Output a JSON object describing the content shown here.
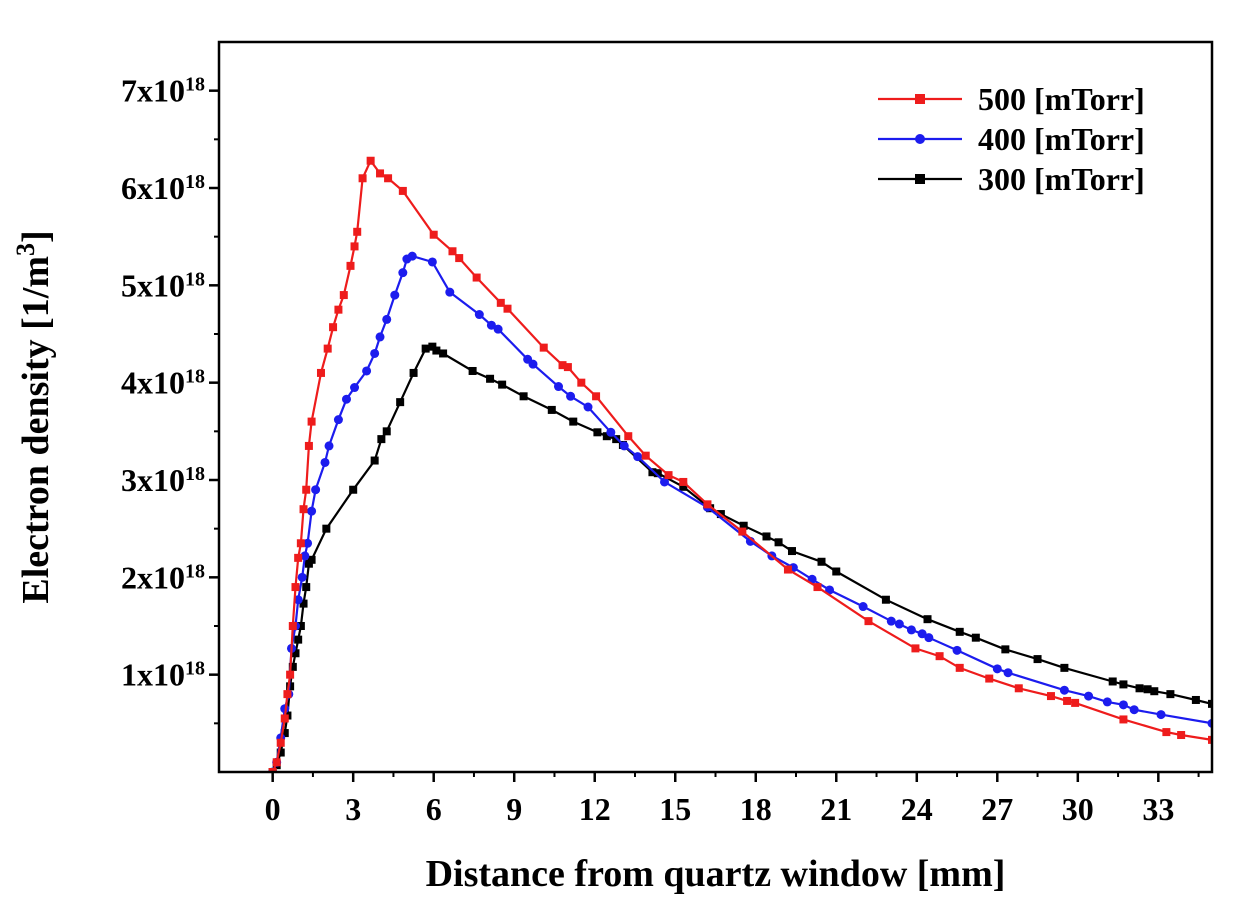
{
  "chart_data": {
    "type": "line",
    "title": "",
    "xlabel": "Distance from quartz window [mm]",
    "ylabel": "Electron density [1/m",
    "ylabel_sup": "3",
    "ylabel_close": "]",
    "xlim": [
      -2,
      35
    ],
    "ylim": [
      0,
      7.5e+18
    ],
    "x_ticks": [
      0,
      3,
      6,
      9,
      12,
      15,
      18,
      21,
      24,
      27,
      30,
      33
    ],
    "x_tick_labels": [
      "0",
      "3",
      "6",
      "9",
      "12",
      "15",
      "18",
      "21",
      "24",
      "27",
      "30",
      "33"
    ],
    "y_ticks": [
      1e+18,
      2e+18,
      3e+18,
      4e+18,
      5e+18,
      6e+18,
      7e+18
    ],
    "y_tick_labels": [
      {
        "base": "1x10",
        "exp": "18"
      },
      {
        "base": "2x10",
        "exp": "18"
      },
      {
        "base": "3x10",
        "exp": "18"
      },
      {
        "base": "4x10",
        "exp": "18"
      },
      {
        "base": "5x10",
        "exp": "18"
      },
      {
        "base": "6x10",
        "exp": "18"
      },
      {
        "base": "7x10",
        "exp": "18"
      }
    ],
    "grid": false,
    "legend_position": "top-right",
    "series": [
      {
        "name": "500 [mTorr]",
        "color": "#ee1c1c",
        "marker": "square",
        "points": [
          [
            0.0,
            0.0
          ],
          [
            0.15,
            1e+17
          ],
          [
            0.3,
            3e+17
          ],
          [
            0.45,
            5.5e+17
          ],
          [
            0.55,
            8e+17
          ],
          [
            0.65,
            1e+18
          ],
          [
            0.75,
            1.5e+18
          ],
          [
            0.85,
            1.9e+18
          ],
          [
            0.95,
            2.2e+18
          ],
          [
            1.05,
            2.35e+18
          ],
          [
            1.15,
            2.7e+18
          ],
          [
            1.25,
            2.9e+18
          ],
          [
            1.35,
            3.35e+18
          ],
          [
            1.45,
            3.6e+18
          ],
          [
            1.8,
            4.1e+18
          ],
          [
            2.05,
            4.35e+18
          ],
          [
            2.25,
            4.57e+18
          ],
          [
            2.45,
            4.75e+18
          ],
          [
            2.65,
            4.9e+18
          ],
          [
            2.9,
            5.2e+18
          ],
          [
            3.05,
            5.4e+18
          ],
          [
            3.15,
            5.55e+18
          ],
          [
            3.35,
            6.1e+18
          ],
          [
            3.65,
            6.28e+18
          ],
          [
            4.0,
            6.15e+18
          ],
          [
            4.3,
            6.1e+18
          ],
          [
            4.85,
            5.97e+18
          ],
          [
            6.0,
            5.52e+18
          ],
          [
            6.7,
            5.35e+18
          ],
          [
            6.95,
            5.28e+18
          ],
          [
            7.6,
            5.08e+18
          ],
          [
            8.5,
            4.82e+18
          ],
          [
            8.75,
            4.76e+18
          ],
          [
            10.1,
            4.36e+18
          ],
          [
            10.8,
            4.18e+18
          ],
          [
            11.0,
            4.16e+18
          ],
          [
            11.5,
            4e+18
          ],
          [
            12.05,
            3.86e+18
          ],
          [
            13.25,
            3.45e+18
          ],
          [
            13.9,
            3.25e+18
          ],
          [
            14.75,
            3.05e+18
          ],
          [
            15.3,
            2.98e+18
          ],
          [
            16.2,
            2.75e+18
          ],
          [
            17.5,
            2.47e+18
          ],
          [
            19.2,
            2.08e+18
          ],
          [
            20.3,
            1.9e+18
          ],
          [
            22.2,
            1.55e+18
          ],
          [
            23.95,
            1.27e+18
          ],
          [
            24.85,
            1.19e+18
          ],
          [
            25.6,
            1.07e+18
          ],
          [
            26.7,
            9.6e+17
          ],
          [
            27.8,
            8.6e+17
          ],
          [
            29.0,
            7.8e+17
          ],
          [
            29.6,
            7.3e+17
          ],
          [
            29.9,
            7.1e+17
          ],
          [
            31.7,
            5.4e+17
          ],
          [
            33.3,
            4.1e+17
          ],
          [
            33.85,
            3.8e+17
          ],
          [
            35.0,
            3.3e+17
          ]
        ]
      },
      {
        "name": "400 [mTorr]",
        "color": "#1c1cee",
        "marker": "circle",
        "points": [
          [
            0.0,
            0.0
          ],
          [
            0.15,
            1e+17
          ],
          [
            0.3,
            3.5e+17
          ],
          [
            0.45,
            6.5e+17
          ],
          [
            0.6,
            8e+17
          ],
          [
            0.7,
            1.27e+18
          ],
          [
            0.85,
            1.5e+18
          ],
          [
            0.95,
            1.77e+18
          ],
          [
            1.1,
            2e+18
          ],
          [
            1.2,
            2.22e+18
          ],
          [
            1.3,
            2.35e+18
          ],
          [
            1.45,
            2.68e+18
          ],
          [
            1.6,
            2.9e+18
          ],
          [
            1.95,
            3.18e+18
          ],
          [
            2.1,
            3.35e+18
          ],
          [
            2.45,
            3.62e+18
          ],
          [
            2.75,
            3.83e+18
          ],
          [
            3.05,
            3.95e+18
          ],
          [
            3.5,
            4.12e+18
          ],
          [
            3.8,
            4.3e+18
          ],
          [
            4.0,
            4.47e+18
          ],
          [
            4.25,
            4.65e+18
          ],
          [
            4.55,
            4.9e+18
          ],
          [
            4.85,
            5.13e+18
          ],
          [
            5.0,
            5.27e+18
          ],
          [
            5.2,
            5.3e+18
          ],
          [
            5.95,
            5.24e+18
          ],
          [
            6.6,
            4.93e+18
          ],
          [
            7.7,
            4.7e+18
          ],
          [
            8.15,
            4.59e+18
          ],
          [
            8.4,
            4.55e+18
          ],
          [
            9.5,
            4.24e+18
          ],
          [
            9.7,
            4.19e+18
          ],
          [
            10.65,
            3.96e+18
          ],
          [
            11.1,
            3.86e+18
          ],
          [
            11.75,
            3.75e+18
          ],
          [
            12.6,
            3.49e+18
          ],
          [
            13.1,
            3.35e+18
          ],
          [
            13.6,
            3.24e+18
          ],
          [
            14.6,
            2.98e+18
          ],
          [
            16.2,
            2.72e+18
          ],
          [
            17.8,
            2.37e+18
          ],
          [
            18.6,
            2.22e+18
          ],
          [
            19.4,
            2.1e+18
          ],
          [
            20.1,
            1.98e+18
          ],
          [
            20.75,
            1.87e+18
          ],
          [
            22.0,
            1.7e+18
          ],
          [
            23.05,
            1.55e+18
          ],
          [
            23.35,
            1.52e+18
          ],
          [
            23.8,
            1.46e+18
          ],
          [
            24.2,
            1.42e+18
          ],
          [
            24.45,
            1.38e+18
          ],
          [
            25.5,
            1.25e+18
          ],
          [
            27.0,
            1.06e+18
          ],
          [
            27.4,
            1.02e+18
          ],
          [
            29.5,
            8.4e+17
          ],
          [
            30.4,
            7.8e+17
          ],
          [
            31.1,
            7.2e+17
          ],
          [
            31.7,
            6.9e+17
          ],
          [
            32.1,
            6.4e+17
          ],
          [
            33.1,
            5.9e+17
          ],
          [
            35.0,
            5e+17
          ]
        ]
      },
      {
        "name": "300 [mTorr]",
        "color": "#000000",
        "marker": "square",
        "points": [
          [
            0.0,
            0.0
          ],
          [
            0.15,
            7e+16
          ],
          [
            0.3,
            2e+17
          ],
          [
            0.45,
            4e+17
          ],
          [
            0.55,
            5.8e+17
          ],
          [
            0.65,
            8.8e+17
          ],
          [
            0.75,
            1.08e+18
          ],
          [
            0.85,
            1.22e+18
          ],
          [
            0.95,
            1.36e+18
          ],
          [
            1.05,
            1.5e+18
          ],
          [
            1.15,
            1.73e+18
          ],
          [
            1.25,
            1.9e+18
          ],
          [
            1.35,
            2.14e+18
          ],
          [
            1.45,
            2.18e+18
          ],
          [
            2.0,
            2.5e+18
          ],
          [
            3.0,
            2.9e+18
          ],
          [
            3.8,
            3.2e+18
          ],
          [
            4.05,
            3.42e+18
          ],
          [
            4.25,
            3.5e+18
          ],
          [
            4.75,
            3.8e+18
          ],
          [
            5.25,
            4.1e+18
          ],
          [
            5.7,
            4.35e+18
          ],
          [
            5.95,
            4.37e+18
          ],
          [
            6.1,
            4.33e+18
          ],
          [
            6.35,
            4.3e+18
          ],
          [
            7.45,
            4.12e+18
          ],
          [
            8.1,
            4.04e+18
          ],
          [
            8.55,
            3.98e+18
          ],
          [
            9.35,
            3.86e+18
          ],
          [
            10.4,
            3.72e+18
          ],
          [
            11.2,
            3.6e+18
          ],
          [
            12.1,
            3.49e+18
          ],
          [
            12.45,
            3.45e+18
          ],
          [
            12.8,
            3.42e+18
          ],
          [
            13.05,
            3.36e+18
          ],
          [
            14.15,
            3.08e+18
          ],
          [
            14.35,
            3.07e+18
          ],
          [
            15.3,
            2.93e+18
          ],
          [
            16.3,
            2.71e+18
          ],
          [
            16.7,
            2.65e+18
          ],
          [
            17.55,
            2.53e+18
          ],
          [
            18.4,
            2.42e+18
          ],
          [
            18.85,
            2.36e+18
          ],
          [
            19.35,
            2.27e+18
          ],
          [
            20.45,
            2.16e+18
          ],
          [
            21.0,
            2.06e+18
          ],
          [
            22.85,
            1.77e+18
          ],
          [
            24.4,
            1.57e+18
          ],
          [
            25.6,
            1.44e+18
          ],
          [
            26.2,
            1.38e+18
          ],
          [
            27.3,
            1.26e+18
          ],
          [
            28.5,
            1.16e+18
          ],
          [
            29.5,
            1.07e+18
          ],
          [
            31.3,
            9.3e+17
          ],
          [
            31.7,
            9e+17
          ],
          [
            32.3,
            8.6e+17
          ],
          [
            32.6,
            8.5e+17
          ],
          [
            32.85,
            8.3e+17
          ],
          [
            33.45,
            8e+17
          ],
          [
            34.4,
            7.4e+17
          ],
          [
            35.0,
            7e+17
          ]
        ]
      }
    ]
  }
}
